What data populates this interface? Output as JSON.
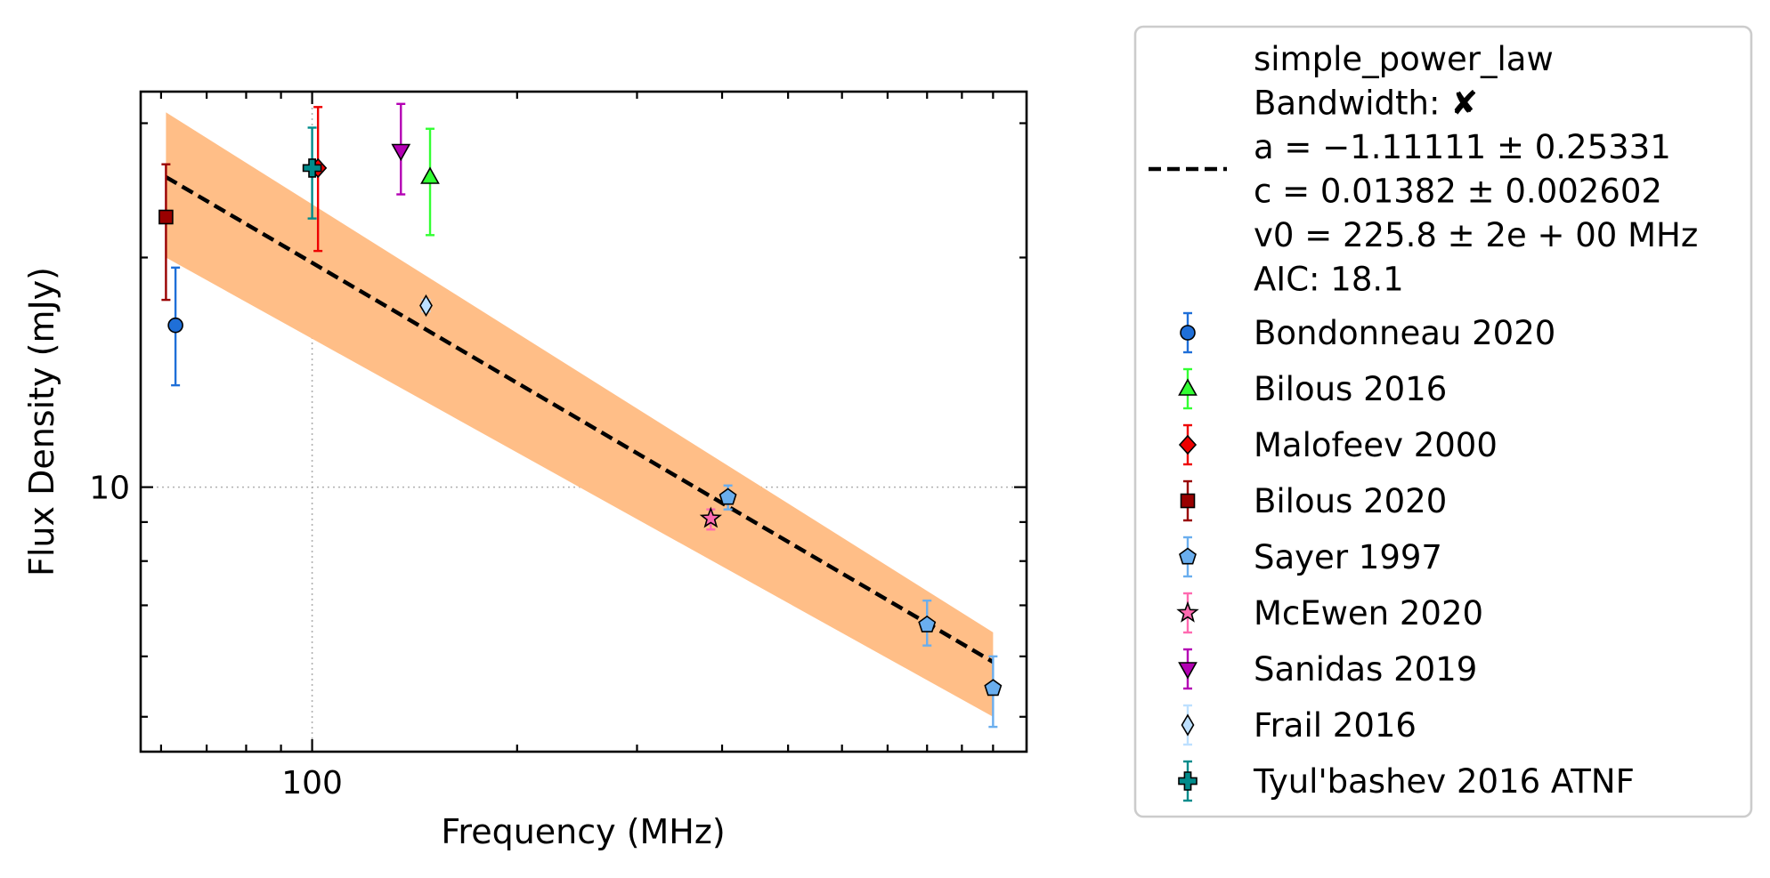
{
  "chart_data": {
    "type": "scatter",
    "xlabel": "Frequency (MHz)",
    "ylabel": "Flux Density (mJy)",
    "xscale": "log",
    "yscale": "log",
    "xlim": [
      56,
      1120
    ],
    "ylim": [
      4.5,
      33
    ],
    "x_ticks": [
      {
        "value": 100,
        "label": "100"
      }
    ],
    "y_ticks": [
      {
        "value": 10,
        "label": "10"
      }
    ],
    "grid": "dotted lines at x=100 and y=10",
    "legend_position": "outside right",
    "fit": {
      "model": "simple_power_law",
      "legend_lines": [
        "simple_power_law",
        "Bandwidth: ✘",
        "a = −1.11111 ± 0.25331",
        "c = 0.01382 ± 0.002602",
        "v0 = 225.8 ± 2e + 00 MHz",
        "AIC: 18.1"
      ],
      "x_range": [
        61,
        1000
      ],
      "line_endpoints": [
        [
          61,
          25.5
        ],
        [
          1000,
          5.9
        ]
      ],
      "band_upper": [
        [
          61,
          31.0
        ],
        [
          1000,
          6.45
        ]
      ],
      "band_lower": [
        [
          61,
          20.0
        ],
        [
          1000,
          5.0
        ]
      ],
      "line_color": "#000000",
      "band_color": "#ffbe87"
    },
    "series": [
      {
        "name": "Bondonneau 2020",
        "marker": "circle",
        "color": "#1f6fd8",
        "ecolor": "#1f6fd8",
        "points": [
          {
            "x": 63,
            "y": 16.3,
            "ylo": 13.6,
            "yhi": 19.4
          }
        ]
      },
      {
        "name": "Bilous 2016",
        "marker": "triangle-up",
        "color": "#33ff33",
        "ecolor": "#33ff33",
        "points": [
          {
            "x": 149,
            "y": 25.5,
            "ylo": 21.4,
            "yhi": 29.5
          }
        ]
      },
      {
        "name": "Malofeev 2000",
        "marker": "diamond",
        "color": "#ee0000",
        "ecolor": "#ee0000",
        "points": [
          {
            "x": 102,
            "y": 26.2,
            "ylo": 20.4,
            "yhi": 31.5
          }
        ]
      },
      {
        "name": "Bilous 2020",
        "marker": "square",
        "color": "#990000",
        "ecolor": "#990000",
        "points": [
          {
            "x": 61,
            "y": 22.6,
            "ylo": 17.6,
            "yhi": 26.5
          }
        ]
      },
      {
        "name": "Sayer 1997",
        "marker": "pentagon",
        "color": "#6aaeee",
        "ecolor": "#6aaeee",
        "points": [
          {
            "x": 408,
            "y": 9.7,
            "ylo": 9.35,
            "yhi": 10.05
          },
          {
            "x": 800,
            "y": 6.6,
            "ylo": 6.2,
            "yhi": 7.1
          },
          {
            "x": 1000,
            "y": 5.45,
            "ylo": 4.85,
            "yhi": 6.0
          }
        ]
      },
      {
        "name": "McEwen 2020",
        "marker": "star",
        "color": "#ff6ab0",
        "ecolor": "#ff6ab0",
        "points": [
          {
            "x": 385,
            "y": 9.1,
            "ylo": 8.8,
            "yhi": 9.35
          }
        ]
      },
      {
        "name": "Sanidas 2019",
        "marker": "triangle-down",
        "color": "#b400b4",
        "ecolor": "#b400b4",
        "points": [
          {
            "x": 135,
            "y": 27.6,
            "ylo": 24.2,
            "yhi": 31.8
          }
        ]
      },
      {
        "name": "Frail 2016",
        "marker": "thin-diamond",
        "color": "#bde0ff",
        "ecolor": "#bde0ff",
        "points": [
          {
            "x": 147,
            "y": 17.3,
            "ylo": 17.0,
            "yhi": 17.6
          }
        ]
      },
      {
        "name": "Tyul'bashev 2016 ATNF",
        "marker": "plus",
        "color": "#008b8b",
        "ecolor": "#008b8b",
        "points": [
          {
            "x": 100,
            "y": 26.2,
            "ylo": 22.5,
            "yhi": 29.6
          }
        ]
      }
    ]
  }
}
